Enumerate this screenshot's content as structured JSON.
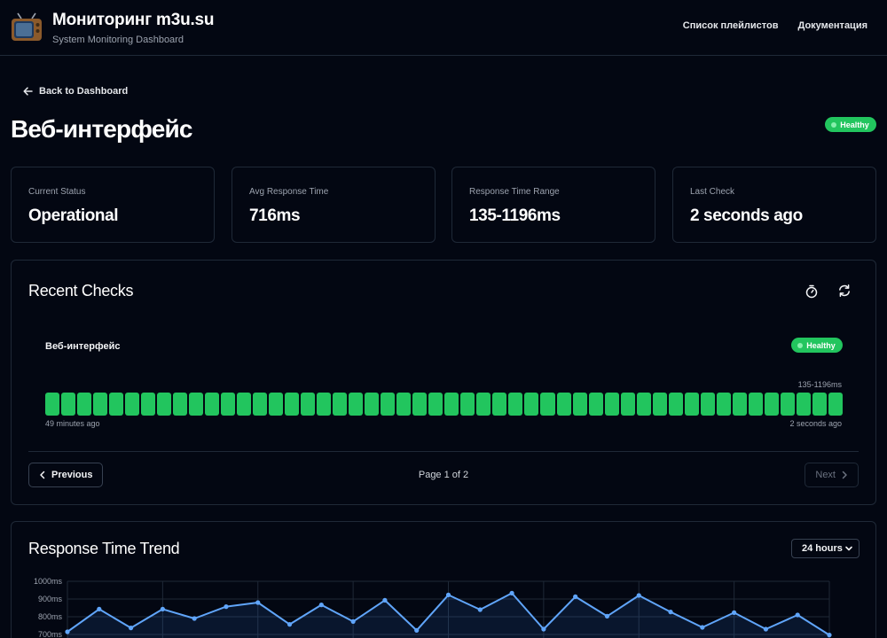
{
  "header": {
    "title": "Мониторинг m3u.su",
    "subtitle": "System Monitoring Dashboard",
    "nav": [
      "Список плейлистов",
      "Документация"
    ]
  },
  "back_link": "Back to Dashboard",
  "page_title": "Веб-интерфейс",
  "status_badge": "Healthy",
  "stats": [
    {
      "label": "Current Status",
      "value": "Operational"
    },
    {
      "label": "Avg Response Time",
      "value": "716ms"
    },
    {
      "label": "Response Time Range",
      "value": "135-1196ms"
    },
    {
      "label": "Last Check",
      "value": "2 seconds ago"
    }
  ],
  "recent_checks": {
    "title": "Recent Checks",
    "service_name": "Веб-интерфейс",
    "service_badge": "Healthy",
    "range_label": "135-1196ms",
    "check_count": 50,
    "time_start": "49 minutes ago",
    "time_end": "2 seconds ago",
    "pagination": {
      "prev": "Previous",
      "page": "Page 1 of 2",
      "next": "Next"
    },
    "icons": [
      "timer-icon",
      "refresh-icon"
    ]
  },
  "trend": {
    "title": "Response Time Trend",
    "range_select": "24 hours"
  },
  "chart_data": {
    "type": "line",
    "title": "Response Time Trend",
    "xlabel": "",
    "ylabel": "",
    "yticks": [
      "1000ms",
      "900ms",
      "800ms",
      "700ms"
    ],
    "ylim": [
      700,
      1000
    ],
    "grid": true,
    "values": [
      715,
      843,
      737,
      843,
      790,
      857,
      880,
      757,
      867,
      773,
      893,
      723,
      923,
      840,
      933,
      730,
      913,
      803,
      920,
      827,
      740,
      823,
      730,
      810,
      697
    ]
  },
  "colors": {
    "background": "#030712",
    "border": "#1f2937",
    "healthy": "#22c55e",
    "line": "#60a5fa"
  }
}
